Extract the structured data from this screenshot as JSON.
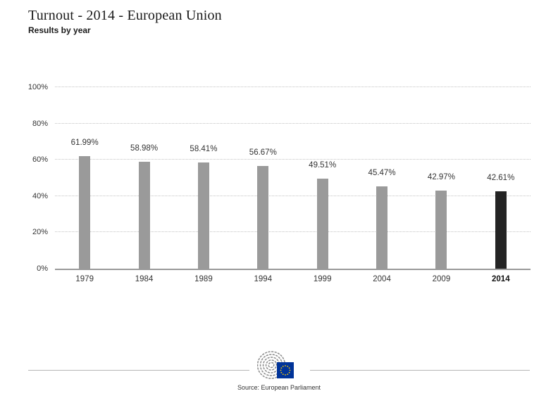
{
  "header": {
    "title": "Turnout - 2014 - European Union",
    "subtitle": "Results by year"
  },
  "chart_data": {
    "type": "bar",
    "title": "Turnout - 2014 - European Union",
    "subtitle": "Results by year",
    "categories": [
      "1979",
      "1984",
      "1989",
      "1994",
      "1999",
      "2004",
      "2009",
      "2014"
    ],
    "values": [
      61.99,
      58.98,
      58.41,
      56.67,
      49.51,
      45.47,
      42.97,
      42.61
    ],
    "value_labels": [
      "61.99%",
      "58.98%",
      "58.41%",
      "56.67%",
      "49.51%",
      "45.47%",
      "42.97%",
      "42.61%"
    ],
    "highlight_index": 7,
    "y_ticks": [
      {
        "value": 0,
        "label": "0%"
      },
      {
        "value": 20,
        "label": "20%"
      },
      {
        "value": 40,
        "label": "40%"
      },
      {
        "value": 60,
        "label": "60%"
      },
      {
        "value": 80,
        "label": "80%"
      },
      {
        "value": 100,
        "label": "100%"
      }
    ],
    "ylim": [
      0,
      100
    ],
    "xlabel": "",
    "ylabel": "",
    "grid": "dotted-horizontal",
    "legend": "none",
    "bar_color": "#9a9a9a",
    "highlight_color": "#242424",
    "label_color": "#333333"
  },
  "footer": {
    "source": "Source: European Parliament",
    "logo": "european-parliament-logo",
    "eu_flag_color": "#003399",
    "eu_star_color": "#ffcc00"
  }
}
